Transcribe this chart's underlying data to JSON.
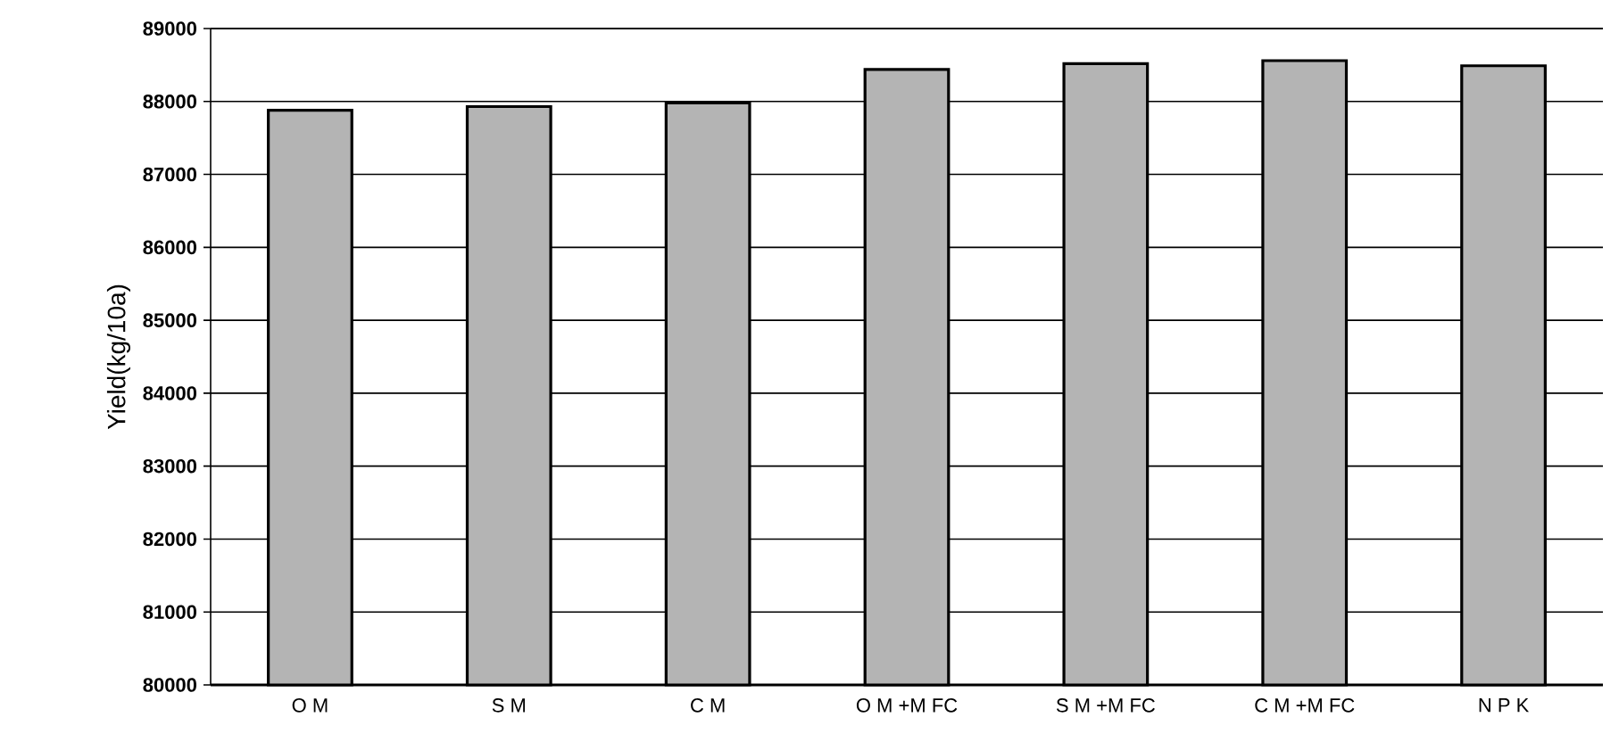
{
  "chart_data": {
    "type": "bar",
    "ylabel": "Yield(kg/10a)",
    "categories": [
      "O M",
      "S M",
      "C M",
      "O M +M FC",
      "S M +M FC",
      "C M +M FC",
      "N P K"
    ],
    "values": [
      87880,
      87930,
      87980,
      88440,
      88520,
      88560,
      88490
    ],
    "color": "#b4b4b4",
    "ylim": [
      80000,
      89000
    ],
    "yticks": [
      80000,
      81000,
      82000,
      83000,
      84000,
      85000,
      86000,
      87000,
      88000,
      89000
    ],
    "grid": "y"
  }
}
